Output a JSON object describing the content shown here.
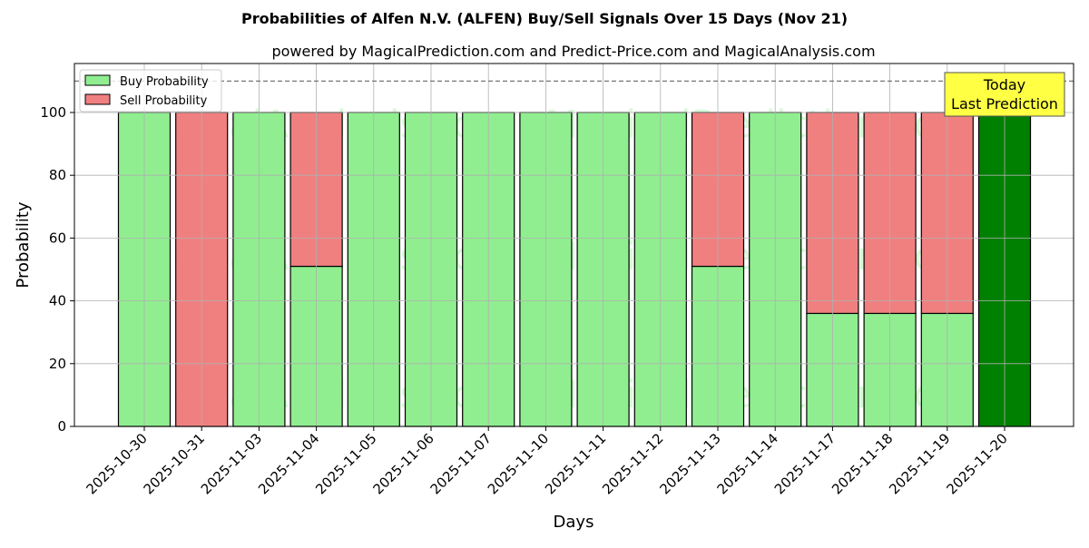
{
  "chart_data": {
    "type": "bar",
    "stacked": true,
    "title": "Probabilities of Alfen N.V. (ALFEN) Buy/Sell Signals Over 15 Days (Nov 21)",
    "subtitle": "powered by MagicalPrediction.com and Predict-Price.com and MagicalAnalysis.com",
    "xlabel": "Days",
    "ylabel": "Probability",
    "ylim": [
      0,
      115.6
    ],
    "yticks": [
      0,
      20,
      40,
      60,
      80,
      100
    ],
    "grid": true,
    "legend_placement": "top-left",
    "categories": [
      "2025-10-30",
      "2025-10-31",
      "2025-11-03",
      "2025-11-04",
      "2025-11-05",
      "2025-11-06",
      "2025-11-07",
      "2025-11-10",
      "2025-11-11",
      "2025-11-12",
      "2025-11-13",
      "2025-11-14",
      "2025-11-17",
      "2025-11-18",
      "2025-11-19",
      "2025-11-20"
    ],
    "series": [
      {
        "name": "Buy Probability",
        "color": "#90ee90",
        "values": [
          100,
          0,
          100,
          51,
          100,
          100,
          100,
          100,
          100,
          100,
          51,
          100,
          36,
          36,
          36,
          100
        ]
      },
      {
        "name": "Sell Probability",
        "color": "#f08080",
        "values": [
          0,
          100,
          0,
          49,
          0,
          0,
          0,
          0,
          0,
          0,
          49,
          0,
          64,
          64,
          64,
          0
        ]
      }
    ],
    "today_color": "#008000",
    "reference_line": 110,
    "annotation": "Today\nLast Prediction",
    "watermarks": [
      "MagicalAnalysis.com",
      "MagicalPrediction.com"
    ]
  }
}
